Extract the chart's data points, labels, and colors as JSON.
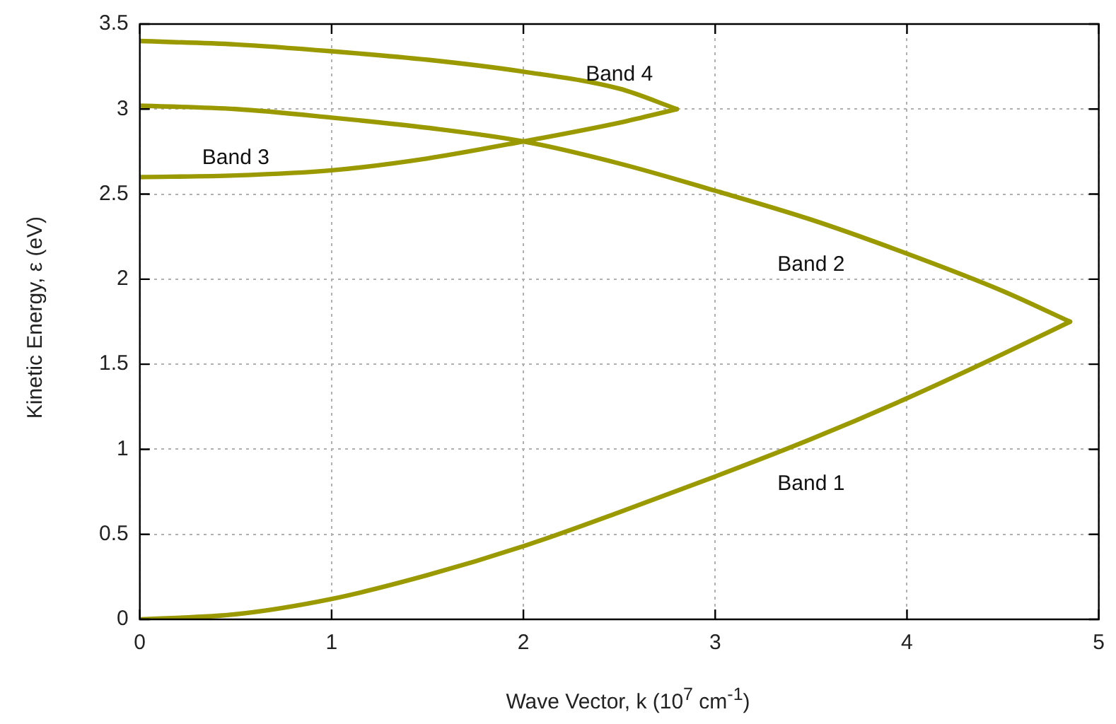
{
  "chart_data": {
    "type": "line",
    "xlabel": "Wave Vector, k (10$^{7}$ cm$^{-1}$)",
    "ylabel": "Kinetic Energy, ε (eV)",
    "xlim": [
      0,
      5
    ],
    "xticks": [
      0,
      1,
      2,
      3,
      4,
      5
    ],
    "ylim": [
      0,
      3.5
    ],
    "yticks": [
      0,
      0.5,
      1,
      1.5,
      2,
      2.5,
      3,
      3.5
    ],
    "grid": true,
    "legend": false,
    "marker": "none",
    "line_style": "solid",
    "series": [
      {
        "name": "Band 1",
        "color": "#9a9a00",
        "x": [
          0,
          0.5,
          1,
          1.5,
          2,
          2.5,
          3,
          3.5,
          4,
          4.5,
          4.85
        ],
        "values": [
          0,
          0.03,
          0.12,
          0.26,
          0.43,
          0.63,
          0.84,
          1.06,
          1.3,
          1.56,
          1.75
        ]
      },
      {
        "name": "Band 2",
        "color": "#9a9a00",
        "x": [
          0,
          0.5,
          1,
          1.5,
          2,
          2.5,
          3,
          3.5,
          4,
          4.5,
          4.85
        ],
        "values": [
          3.02,
          3.0,
          2.95,
          2.89,
          2.81,
          2.68,
          2.52,
          2.35,
          2.15,
          1.93,
          1.75
        ]
      },
      {
        "name": "Band 3",
        "color": "#9a9a00",
        "x": [
          0,
          0.5,
          1,
          1.5,
          2,
          2.5,
          2.8
        ],
        "values": [
          2.6,
          2.61,
          2.64,
          2.71,
          2.81,
          2.92,
          3.0
        ]
      },
      {
        "name": "Band 4",
        "color": "#9a9a00",
        "x": [
          0,
          0.5,
          1,
          1.5,
          2,
          2.5,
          2.8
        ],
        "values": [
          3.4,
          3.38,
          3.34,
          3.29,
          3.22,
          3.12,
          3.0
        ]
      }
    ]
  }
}
